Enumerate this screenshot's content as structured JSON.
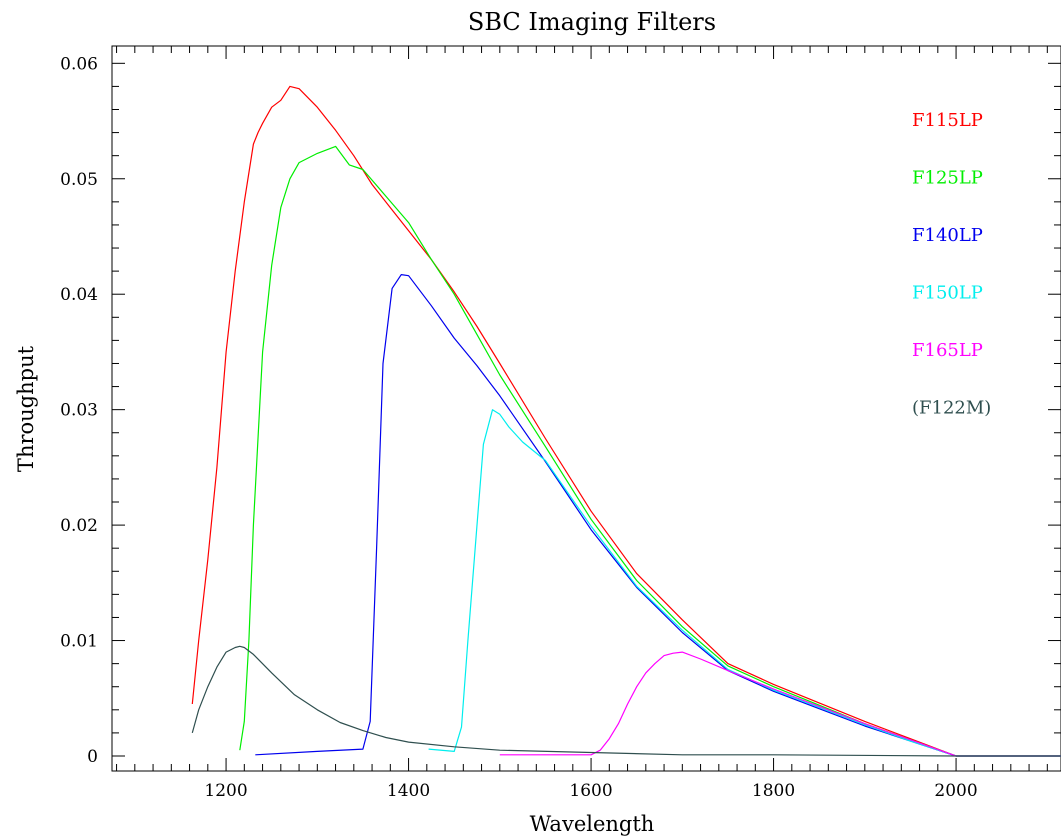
{
  "chart_data": {
    "type": "line",
    "title": "SBC Imaging Filters",
    "xlabel": "Wavelength",
    "ylabel": "Throughput",
    "xlim": [
      1075,
      2115
    ],
    "ylim": [
      -0.0013,
      0.0615
    ],
    "x_ticks": [
      1200,
      1400,
      1600,
      1800,
      2000
    ],
    "x_tick_labels": [
      "1200",
      "1400",
      "1600",
      "1800",
      "2000"
    ],
    "y_ticks": [
      0,
      0.01,
      0.02,
      0.03,
      0.04,
      0.05,
      0.06
    ],
    "y_tick_labels": [
      "0",
      "0.01",
      "0.02",
      "0.03",
      "0.04",
      "0.05",
      "0.06"
    ],
    "grid": false,
    "legend_position": "top-right",
    "series": [
      {
        "name": "F115LP",
        "color": "#ff0000",
        "x": [
          1163,
          1170,
          1180,
          1190,
          1200,
          1210,
          1220,
          1230,
          1235,
          1240,
          1250,
          1260,
          1270,
          1280,
          1300,
          1320,
          1340,
          1360,
          1380,
          1400,
          1425,
          1450,
          1475,
          1500,
          1550,
          1600,
          1650,
          1700,
          1750,
          1800,
          1850,
          1900,
          1950,
          2000,
          2115
        ],
        "y": [
          0.0045,
          0.01,
          0.017,
          0.025,
          0.035,
          0.042,
          0.048,
          0.053,
          0.054,
          0.0548,
          0.0562,
          0.0568,
          0.058,
          0.0578,
          0.0562,
          0.0542,
          0.052,
          0.0495,
          0.0475,
          0.0455,
          0.043,
          0.0402,
          0.0372,
          0.034,
          0.0275,
          0.0212,
          0.0158,
          0.0118,
          0.008,
          0.0062,
          0.0046,
          0.003,
          0.0015,
          0.0,
          0.0
        ]
      },
      {
        "name": "F125LP",
        "color": "#00ee00",
        "x": [
          1215,
          1220,
          1225,
          1230,
          1240,
          1250,
          1260,
          1270,
          1280,
          1300,
          1320,
          1335,
          1350,
          1375,
          1400,
          1425,
          1450,
          1475,
          1500,
          1550,
          1600,
          1650,
          1700,
          1750,
          1800,
          1850,
          1900,
          1950,
          2000,
          2115
        ],
        "y": [
          0.0005,
          0.003,
          0.01,
          0.02,
          0.035,
          0.0425,
          0.0475,
          0.05,
          0.0514,
          0.0522,
          0.0528,
          0.0512,
          0.0508,
          0.0485,
          0.0462,
          0.043,
          0.04,
          0.0365,
          0.033,
          0.0268,
          0.0205,
          0.0152,
          0.0112,
          0.0078,
          0.006,
          0.0044,
          0.0028,
          0.0014,
          0.0,
          0.0
        ]
      },
      {
        "name": "F140LP",
        "color": "#0000ee",
        "x": [
          1232,
          1300,
          1350,
          1358,
          1365,
          1372,
          1382,
          1392,
          1400,
          1425,
          1450,
          1475,
          1500,
          1550,
          1600,
          1650,
          1700,
          1750,
          1800,
          1850,
          1900,
          1950,
          2000,
          2115
        ],
        "y": [
          0.0001,
          0.0004,
          0.0006,
          0.003,
          0.018,
          0.034,
          0.0405,
          0.0417,
          0.0416,
          0.039,
          0.0362,
          0.0338,
          0.0312,
          0.0255,
          0.0196,
          0.0146,
          0.0107,
          0.0074,
          0.0056,
          0.0041,
          0.0026,
          0.0013,
          0.0,
          0.0
        ]
      },
      {
        "name": "F150LP",
        "color": "#00eeee",
        "x": [
          1422,
          1450,
          1458,
          1465,
          1475,
          1482,
          1492,
          1500,
          1510,
          1525,
          1550,
          1600,
          1650,
          1700,
          1750,
          1800,
          1850,
          1900,
          1950,
          2000,
          2115
        ],
        "y": [
          0.0006,
          0.0004,
          0.0025,
          0.01,
          0.02,
          0.027,
          0.03,
          0.0296,
          0.0285,
          0.0272,
          0.0256,
          0.0199,
          0.0147,
          0.0109,
          0.0075,
          0.0057,
          0.0042,
          0.0027,
          0.0013,
          0.0,
          0.0
        ]
      },
      {
        "name": "F165LP",
        "color": "#ff00ff",
        "x": [
          1500,
          1550,
          1600,
          1610,
          1620,
          1630,
          1640,
          1650,
          1660,
          1670,
          1680,
          1690,
          1700,
          1720,
          1750,
          1800,
          1850,
          1900,
          1950,
          2000,
          2115
        ],
        "y": [
          0.0001,
          0.0001,
          0.0001,
          0.0005,
          0.0015,
          0.0028,
          0.0045,
          0.006,
          0.0072,
          0.008,
          0.0087,
          0.0089,
          0.009,
          0.0084,
          0.0074,
          0.0058,
          0.0043,
          0.0028,
          0.0014,
          0.0,
          0.0
        ]
      },
      {
        "name": "(F122M)",
        "color": "#2f4f4f",
        "x": [
          1163,
          1170,
          1180,
          1190,
          1200,
          1210,
          1215,
          1220,
          1230,
          1250,
          1275,
          1300,
          1325,
          1350,
          1375,
          1400,
          1450,
          1500,
          1600,
          1700,
          1800,
          2000,
          2115
        ],
        "y": [
          0.002,
          0.004,
          0.006,
          0.0077,
          0.009,
          0.0094,
          0.0095,
          0.0094,
          0.0088,
          0.0072,
          0.0053,
          0.004,
          0.0029,
          0.0022,
          0.0016,
          0.0012,
          0.0008,
          0.0005,
          0.0003,
          0.0001,
          0.0001,
          0.0,
          0.0
        ]
      }
    ]
  }
}
